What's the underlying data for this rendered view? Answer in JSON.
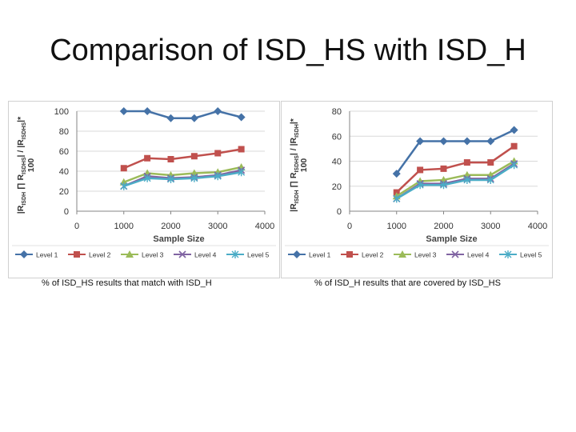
{
  "title": "Comparison of ISD_HS with ISD_H",
  "captions": {
    "left": "% of ISD_HS results that match with ISD_H",
    "right": "% of ISD_H results that are covered by ISD_HS"
  },
  "chart_data": [
    {
      "type": "line",
      "xlabel": "Sample Size",
      "ylabel_line1": "|R",
      "ylabel_line1_sub1": "ISDH",
      "ylabel_line1_mid": " ∏ R",
      "ylabel_line1_sub2": "ISDHS",
      "ylabel_line1_end": "| / |R",
      "ylabel_line1_sub3": "ISDHS",
      "ylabel_line1_tail": "|*",
      "ylabel_line2": "100",
      "xlim": [
        0,
        4000
      ],
      "ylim": [
        0,
        100
      ],
      "xticks": [
        0,
        1000,
        2000,
        3000,
        4000
      ],
      "yticks": [
        0,
        20,
        40,
        60,
        80,
        100
      ],
      "grid": true,
      "legend": "bottom",
      "x": [
        1000,
        1500,
        2000,
        2500,
        3000,
        3500
      ],
      "series": [
        {
          "name": "Level 1",
          "values": [
            100,
            100,
            93,
            93,
            100,
            94
          ],
          "color": "#4572a7",
          "marker": "diamond"
        },
        {
          "name": "Level 2",
          "values": [
            43,
            53,
            52,
            55,
            58,
            62
          ],
          "color": "#c0504d",
          "marker": "square"
        },
        {
          "name": "Level 3",
          "values": [
            29,
            38,
            36,
            38,
            39,
            44
          ],
          "color": "#9bbb59",
          "marker": "triangle"
        },
        {
          "name": "Level 4",
          "values": [
            25,
            35,
            33,
            34,
            36,
            41
          ],
          "color": "#8064a2",
          "marker": "x"
        },
        {
          "name": "Level 5",
          "values": [
            25,
            33,
            32,
            33,
            35,
            39
          ],
          "color": "#4bacc6",
          "marker": "star"
        }
      ]
    },
    {
      "type": "line",
      "xlabel": "Sample Size",
      "ylabel_line1": "|R",
      "ylabel_line1_sub1": "ISDH",
      "ylabel_line1_mid": " ∏ R",
      "ylabel_line1_sub2": "ISDHS",
      "ylabel_line1_end": "| / |R",
      "ylabel_line1_sub3": "ISDH",
      "ylabel_line1_tail": "|*",
      "ylabel_line2": "100",
      "xlim": [
        0,
        4000
      ],
      "ylim": [
        0,
        80
      ],
      "xticks": [
        0,
        1000,
        2000,
        3000,
        4000
      ],
      "yticks": [
        0,
        20,
        40,
        60,
        80
      ],
      "grid": true,
      "legend": "bottom",
      "x": [
        1000,
        1500,
        2000,
        2500,
        3000,
        3500
      ],
      "series": [
        {
          "name": "Level 1",
          "values": [
            30,
            56,
            56,
            56,
            56,
            65
          ],
          "color": "#4572a7",
          "marker": "diamond"
        },
        {
          "name": "Level 2",
          "values": [
            15,
            33,
            34,
            39,
            39,
            52
          ],
          "color": "#c0504d",
          "marker": "square"
        },
        {
          "name": "Level 3",
          "values": [
            12,
            24,
            25,
            29,
            29,
            40
          ],
          "color": "#9bbb59",
          "marker": "triangle"
        },
        {
          "name": "Level 4",
          "values": [
            10,
            22,
            22,
            26,
            26,
            38
          ],
          "color": "#8064a2",
          "marker": "x"
        },
        {
          "name": "Level 5",
          "values": [
            10,
            21,
            21,
            25,
            25,
            37
          ],
          "color": "#4bacc6",
          "marker": "star"
        }
      ]
    }
  ]
}
